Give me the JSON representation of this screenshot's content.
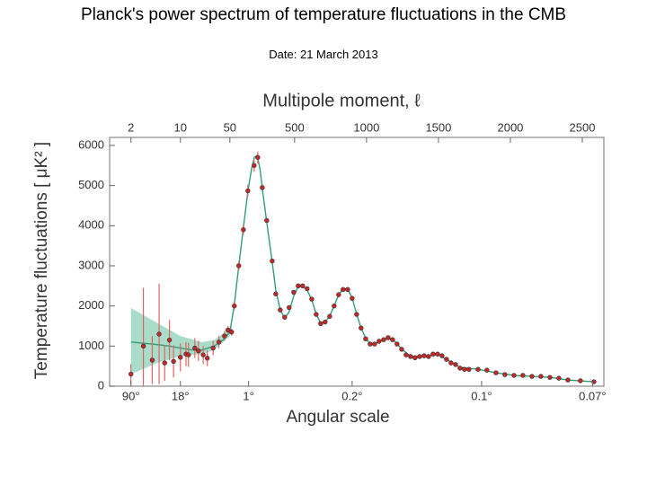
{
  "title": "Planck's power spectrum of temperature fluctuations in the CMB",
  "subtitle": "Date: 21 March 2013",
  "chart_data": {
    "type": "scatter",
    "xlabel": "Multipole moment, ℓ",
    "x2label": "Angular scale",
    "ylabel": "Temperature fluctuations [ μK² ]",
    "xscale": "log-linear",
    "xbreak": 50,
    "xlim": [
      1,
      2650
    ],
    "xticks": [
      2,
      10,
      50,
      500,
      1000,
      1500,
      2000,
      2500
    ],
    "x2ticks": [
      {
        "value": 2,
        "label": "90°"
      },
      {
        "value": 10,
        "label": "18°"
      },
      {
        "value": 180,
        "label": "1°"
      },
      {
        "value": 900,
        "label": "0.2°"
      },
      {
        "value": 1800,
        "label": "0.1°"
      },
      {
        "value": 2571,
        "label": "0.07°"
      }
    ],
    "ylim": [
      0,
      6200
    ],
    "yticks": [
      0,
      1000,
      2000,
      3000,
      4000,
      5000,
      6000
    ],
    "band": {
      "color": "#a9dcc9",
      "x": [
        2,
        5,
        10,
        20,
        30,
        50
      ],
      "lower": [
        300,
        600,
        750,
        800,
        900,
        1250
      ],
      "upper": [
        1950,
        1550,
        1250,
        1100,
        1150,
        1450
      ]
    },
    "series": [
      {
        "style": "line",
        "color": "#2e9e78",
        "x": [
          2,
          4,
          7,
          10,
          15,
          20,
          30,
          40,
          50,
          80,
          112,
          144,
          175,
          200,
          220,
          240,
          260,
          280,
          306,
          344,
          369,
          400,
          431,
          462,
          494,
          525,
          556,
          587,
          619,
          650,
          681,
          712,
          744,
          775,
          806,
          837,
          869,
          900,
          931,
          962,
          994,
          1025,
          1056,
          1119,
          1181,
          1244,
          1306,
          1369,
          1431,
          1494,
          1556,
          1650,
          1775,
          1900,
          2025,
          2150,
          2275,
          2400,
          2581
        ],
        "values": [
          1100,
          1050,
          1000,
          950,
          900,
          900,
          1000,
          1150,
          1350,
          2000,
          3000,
          3950,
          4850,
          5400,
          5700,
          5750,
          5400,
          4800,
          4100,
          3100,
          2400,
          1900,
          1700,
          1850,
          2250,
          2480,
          2500,
          2400,
          2150,
          1800,
          1580,
          1600,
          1750,
          2000,
          2280,
          2420,
          2420,
          2200,
          1800,
          1450,
          1200,
          1060,
          1050,
          1170,
          1180,
          930,
          740,
          740,
          760,
          800,
          670,
          470,
          420,
          335,
          270,
          245,
          220,
          155,
          110
        ]
      },
      {
        "style": "points",
        "color": "#c62828",
        "error_color": "#e06666",
        "x": [
          2,
          3,
          4,
          5,
          6,
          7,
          8,
          10,
          12,
          13,
          16,
          18,
          21,
          24,
          29,
          35,
          42,
          47,
          62,
          81,
          112,
          144,
          175,
          219,
          244,
          275,
          306,
          344,
          369,
          400,
          431,
          462,
          494,
          525,
          556,
          587,
          619,
          650,
          681,
          712,
          744,
          775,
          806,
          837,
          869,
          900,
          931,
          962,
          994,
          1025,
          1056,
          1087,
          1119,
          1150,
          1181,
          1212,
          1244,
          1275,
          1306,
          1337,
          1369,
          1400,
          1431,
          1462,
          1494,
          1525,
          1556,
          1587,
          1619,
          1650,
          1681,
          1712,
          1775,
          1837,
          1900,
          1962,
          2025,
          2087,
          2150,
          2212,
          2275,
          2337,
          2400,
          2487,
          2581
        ],
        "values": [
          300,
          1000,
          650,
          1300,
          580,
          1150,
          620,
          720,
          800,
          780,
          950,
          880,
          780,
          700,
          950,
          1100,
          1250,
          1400,
          1350,
          2000,
          3000,
          3900,
          4870,
          5500,
          5700,
          4950,
          4130,
          3120,
          2300,
          1900,
          1720,
          1960,
          2340,
          2500,
          2500,
          2430,
          2170,
          1790,
          1560,
          1600,
          1740,
          2000,
          2280,
          2410,
          2410,
          2190,
          1790,
          1450,
          1180,
          1050,
          1050,
          1120,
          1160,
          1210,
          1160,
          1050,
          920,
          780,
          740,
          710,
          740,
          760,
          740,
          800,
          800,
          760,
          670,
          580,
          540,
          450,
          420,
          420,
          420,
          400,
          335,
          290,
          270,
          270,
          245,
          245,
          220,
          200,
          155,
          135,
          110
        ],
        "errors": [
          250,
          1450,
          600,
          1250,
          450,
          500,
          400,
          350,
          300,
          300,
          250,
          250,
          230,
          200,
          180,
          150,
          120,
          100,
          90,
          100,
          120,
          130,
          150,
          150,
          150,
          60,
          60,
          60,
          60,
          60,
          60,
          60,
          60,
          60,
          60,
          60,
          60,
          60,
          60,
          60,
          60,
          60,
          60,
          60,
          60,
          60,
          60,
          60,
          60,
          60,
          60,
          60,
          60,
          60,
          60,
          60,
          60,
          60,
          60,
          60,
          60,
          60,
          60,
          60,
          60,
          60,
          60,
          60,
          60,
          60,
          60,
          60,
          40,
          40,
          40,
          40,
          40,
          40,
          40,
          40,
          40,
          40,
          40,
          40,
          40
        ]
      }
    ]
  }
}
